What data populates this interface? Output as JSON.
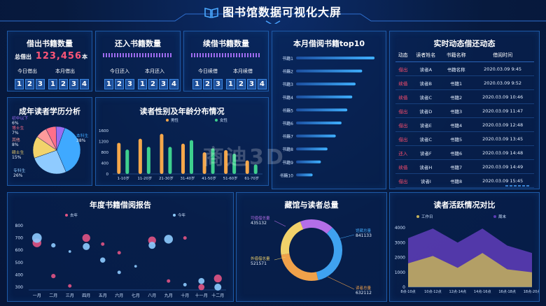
{
  "header": {
    "title": "图书馆数据可视化大屏"
  },
  "borrow": {
    "title": "借出书籍数量",
    "total_label": "总借出",
    "total_value": "123,456",
    "total_unit": "本",
    "today_label": "今日借出",
    "today_digits": [
      "1",
      "2",
      "3"
    ],
    "month_label": "本月借出",
    "month_digits": [
      "1",
      "2",
      "3",
      "4"
    ]
  },
  "returned": {
    "title": "还入书籍数量",
    "today_label": "今日还入",
    "today_digits": [
      "1",
      "2",
      "3"
    ],
    "month_label": "本月还入",
    "month_digits": [
      "1",
      "2",
      "3",
      "4"
    ]
  },
  "renew": {
    "title": "续借书籍数量",
    "today_label": "今日续借",
    "today_digits": [
      "1",
      "2",
      "3"
    ],
    "month_label": "本月续借",
    "month_digits": [
      "1",
      "2",
      "3",
      "4"
    ]
  },
  "top10": {
    "title": "本月借阅书籍top10",
    "books": [
      "书籍1",
      "书籍2",
      "书籍3",
      "书籍4",
      "书籍5",
      "书籍6",
      "书籍7",
      "书籍8",
      "书籍9",
      "书籍10"
    ],
    "values": [
      95,
      80,
      72,
      68,
      62,
      55,
      48,
      38,
      30,
      20
    ]
  },
  "realtime": {
    "title": "实时动态借还动态",
    "headers": [
      "动态",
      "读者姓名",
      "书籍名称",
      "借阅时间"
    ],
    "rows": [
      [
        "借出",
        "读者A",
        "书籍名称",
        "2020.03.09 9:45"
      ],
      [
        "续借",
        "读者B",
        "书籍1",
        "2020.03.09 9:52"
      ],
      [
        "续借",
        "读者C",
        "书籍2",
        "2020.03.09 10:46"
      ],
      [
        "借出",
        "读者D",
        "书籍3",
        "2020.03.09 11:47"
      ],
      [
        "借出",
        "读者E",
        "书籍4",
        "2020.03.09 12:48"
      ],
      [
        "借出",
        "读者C",
        "书籍5",
        "2020.03.09 13:45"
      ],
      [
        "还入",
        "读者F",
        "书籍6",
        "2020.03.09 14:48"
      ],
      [
        "续借",
        "读者H",
        "书籍7",
        "2020.03.09 14:49"
      ],
      [
        "借出",
        "读者I",
        "书籍8",
        "2020.03.09 15:45"
      ]
    ],
    "colors": {
      "借出": "#ff4d6d",
      "续借": "#ff4d6d",
      "还入": "#ff4d6d"
    }
  },
  "education": {
    "title": "成年读者学历分析",
    "labels": [
      "本科生",
      "专科生",
      "硕士生",
      "其他",
      "博士生",
      "初中以下"
    ],
    "pcts": [
      "38%",
      "26%",
      "15%",
      "8%",
      "7%",
      "6%"
    ],
    "values": [
      38,
      26,
      15,
      8,
      7,
      6
    ],
    "colors": [
      "#3fa9ff",
      "#8fcbff",
      "#f2d36b",
      "#ff9b9b",
      "#ff6f8a",
      "#9a6cf0"
    ]
  },
  "gender": {
    "title": "读者性别及年龄分布情况",
    "legend": [
      "男性",
      "女性"
    ],
    "ages": [
      "1-10岁",
      "11-20岁",
      "21-30岁",
      "31-40岁",
      "41-50岁",
      "51-60岁",
      "61-70岁"
    ],
    "male": [
      1150,
      1300,
      1480,
      1120,
      800,
      880,
      500
    ],
    "female": [
      900,
      1000,
      1000,
      1250,
      950,
      750,
      350
    ],
    "ylim": [
      0,
      1600
    ],
    "yticks": [
      "1600",
      "1200",
      "800",
      "400",
      "0"
    ],
    "colors": {
      "male": "#f5a74b",
      "female": "#3ecf8e"
    }
  },
  "annual": {
    "title": "年度书籍借阅报告",
    "legend": [
      "去年",
      "今年"
    ],
    "months": [
      "一月",
      "二月",
      "三月",
      "四月",
      "五月",
      "六月",
      "七月",
      "八月",
      "九月",
      "十月",
      "十一月",
      "十二月"
    ],
    "yticks": [
      "800",
      "700",
      "600",
      "500",
      "400",
      "300"
    ],
    "ylim": [
      300,
      800
    ],
    "last": [
      [
        1,
        660,
        10
      ],
      [
        2,
        390,
        5
      ],
      [
        3,
        310,
        4
      ],
      [
        4,
        700,
        9
      ],
      [
        5,
        650,
        4
      ],
      [
        6,
        580,
        4
      ],
      [
        8,
        680,
        9
      ],
      [
        9,
        350,
        4
      ],
      [
        10,
        700,
        4
      ],
      [
        11,
        300,
        7
      ],
      [
        12,
        370,
        9
      ]
    ],
    "this": [
      [
        1,
        700,
        11
      ],
      [
        2,
        640,
        5
      ],
      [
        3,
        590,
        3
      ],
      [
        4,
        630,
        8
      ],
      [
        5,
        520,
        6
      ],
      [
        6,
        420,
        4
      ],
      [
        7,
        470,
        3
      ],
      [
        8,
        640,
        8
      ],
      [
        9,
        690,
        10
      ],
      [
        10,
        320,
        4
      ],
      [
        11,
        350,
        7
      ],
      [
        12,
        300,
        8
      ]
    ],
    "colors": {
      "last": "#e25484",
      "this": "#8ecbff"
    }
  },
  "total": {
    "title": "藏馆与读者总量",
    "items": [
      {
        "label": "可借借总量",
        "value": "435132",
        "color": "#b46ee8"
      },
      {
        "label": "馆藏总量",
        "value": "841133",
        "color": "#3fa2f0"
      },
      {
        "label": "外借借总量",
        "value": "521571",
        "color": "#f1d16a"
      },
      {
        "label": "读者总量",
        "value": "632112",
        "color": "#f0a14a"
      }
    ],
    "values": [
      435132,
      841133,
      632112,
      521571
    ]
  },
  "activity": {
    "title": "读者活跃情况对比",
    "legend": [
      "工作日",
      "周末"
    ],
    "x": [
      "8点-10点",
      "10点-12点",
      "12点-14点",
      "14点-16点",
      "16点-18点",
      "18点-20点"
    ],
    "yticks": [
      "4000",
      "3000",
      "2000",
      "1000",
      "0"
    ],
    "ylim": [
      0,
      4000
    ],
    "workday": [
      1600,
      2100,
      1300,
      2300,
      1200,
      1000
    ],
    "weekend": [
      3300,
      3950,
      3000,
      3950,
      2800,
      2300
    ],
    "colors": {
      "workday": "#c4b15a",
      "weekend": "#5b3cb4"
    }
  },
  "watermark": "商迪3D"
}
